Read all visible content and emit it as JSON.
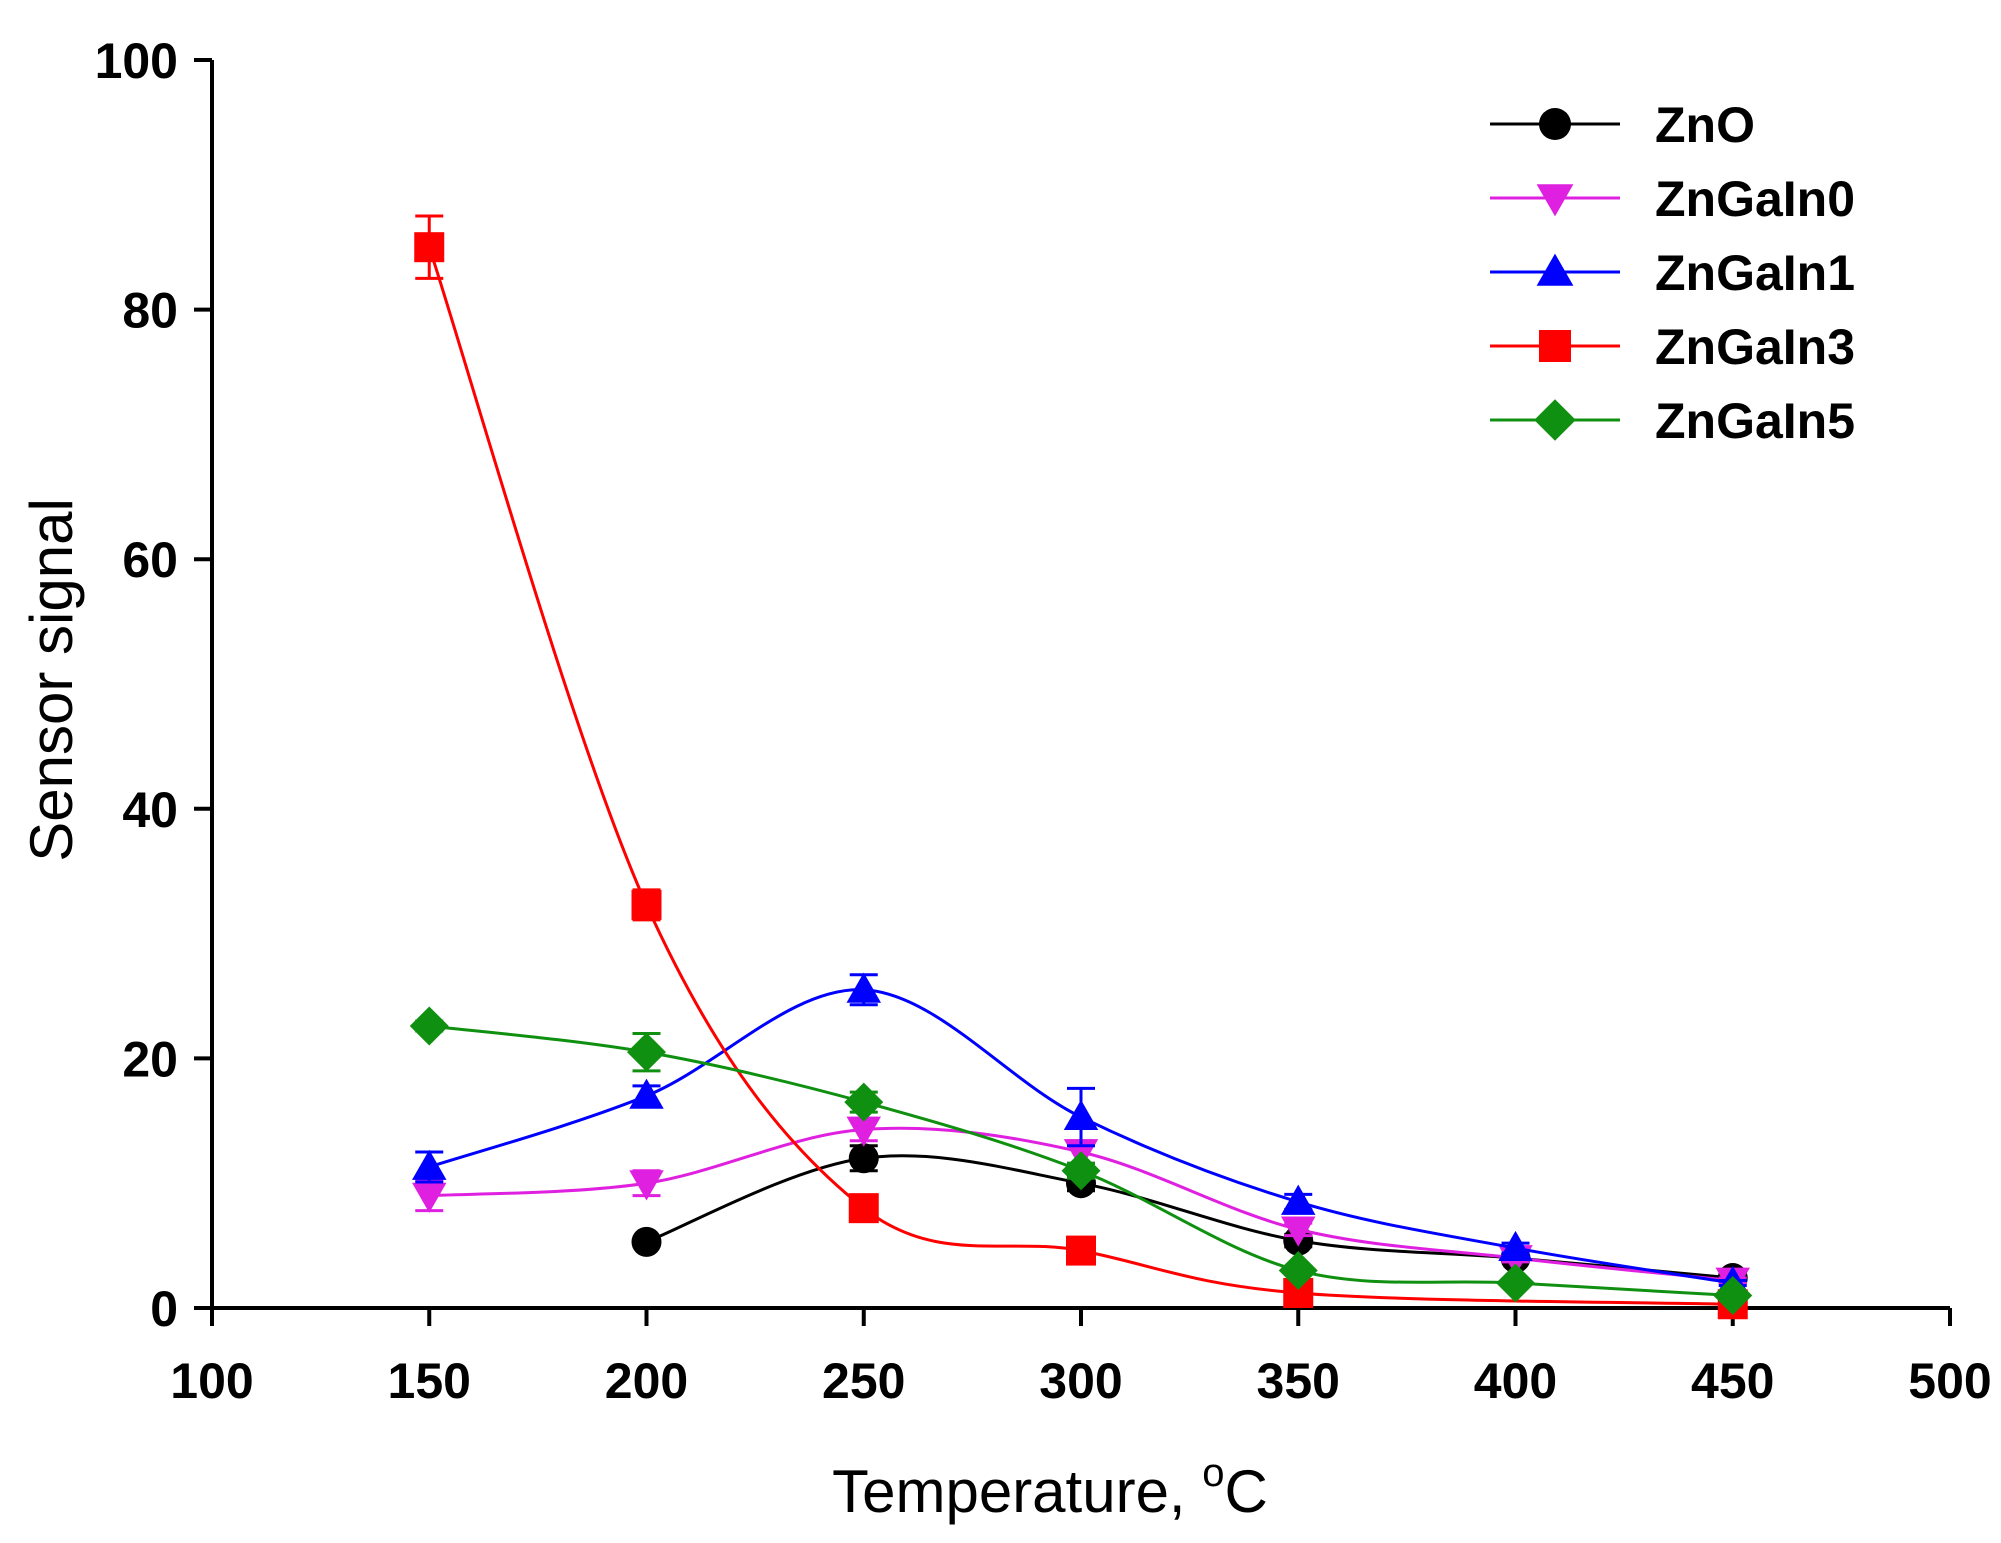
{
  "chart_data": {
    "type": "line",
    "title": "",
    "xlabel": "Temperature, ",
    "xlabel_unit_sup": "o",
    "xlabel_unit": "C",
    "ylabel": "Sensor signal",
    "xlim": [
      100,
      500
    ],
    "ylim": [
      0,
      100
    ],
    "xticks": [
      100,
      150,
      200,
      250,
      300,
      350,
      400,
      450,
      500
    ],
    "yticks": [
      0,
      20,
      40,
      60,
      80,
      100
    ],
    "grid": false,
    "legend_position": "top-right",
    "series": [
      {
        "name": "ZnO",
        "color": "#000000",
        "marker": "circle",
        "x": [
          200,
          250,
          300,
          350,
          400,
          450
        ],
        "y": [
          5.3,
          12.0,
          10.0,
          5.4,
          4.0,
          2.4
        ],
        "err": [
          0,
          1.0,
          0.6,
          0.5,
          0.3,
          0.2
        ]
      },
      {
        "name": "ZnGaIn0",
        "color": "#e020e0",
        "marker": "triangle-down",
        "x": [
          150,
          200,
          250,
          300,
          350,
          400,
          450
        ],
        "y": [
          9.0,
          10.0,
          14.3,
          12.5,
          6.3,
          4.0,
          2.2
        ],
        "err": [
          1.2,
          1.0,
          0.9,
          0.9,
          0.5,
          0.3,
          0.2
        ]
      },
      {
        "name": "ZnGaIn1",
        "color": "#0000ff",
        "marker": "triangle-up",
        "x": [
          150,
          200,
          250,
          300,
          350,
          400,
          450
        ],
        "y": [
          11.3,
          17.0,
          25.5,
          15.3,
          8.5,
          4.8,
          2.0
        ],
        "err": [
          1.2,
          0.8,
          1.2,
          2.3,
          0.6,
          0.4,
          0.2
        ]
      },
      {
        "name": "ZnGaIn3",
        "color": "#ff0000",
        "marker": "square",
        "x": [
          150,
          200,
          250,
          300,
          350,
          450
        ],
        "y": [
          85.0,
          32.3,
          8.0,
          4.6,
          1.2,
          0.3
        ],
        "err": [
          2.5,
          1.2,
          0.5,
          0.3,
          0.2,
          0.1
        ]
      },
      {
        "name": "ZnGaIn5",
        "color": "#109010",
        "marker": "diamond",
        "x": [
          150,
          200,
          250,
          300,
          350,
          400,
          450
        ],
        "y": [
          22.6,
          20.5,
          16.5,
          11.0,
          3.0,
          2.0,
          1.0
        ],
        "err": [
          0.4,
          1.5,
          0.8,
          0.6,
          0.3,
          0.2,
          0.1
        ]
      }
    ]
  }
}
